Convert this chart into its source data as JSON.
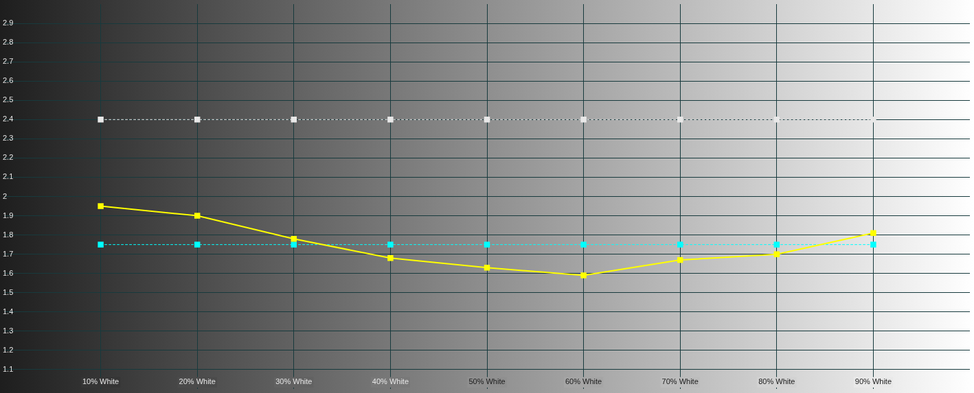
{
  "chart_data": {
    "type": "line",
    "x": [
      10,
      20,
      30,
      40,
      50,
      60,
      70,
      80,
      90
    ],
    "xlim": [
      0,
      100
    ],
    "xticks": [
      {
        "value": 10,
        "label": "10% White"
      },
      {
        "value": 20,
        "label": "20% White"
      },
      {
        "value": 30,
        "label": "30% White"
      },
      {
        "value": 40,
        "label": "40% White"
      },
      {
        "value": 50,
        "label": "50% White"
      },
      {
        "value": 60,
        "label": "60% White"
      },
      {
        "value": 70,
        "label": "70% White"
      },
      {
        "value": 80,
        "label": "80% White"
      },
      {
        "value": 90,
        "label": "90% White"
      }
    ],
    "ylim": [
      1.0,
      3.0
    ],
    "yticks": [
      1.1,
      1.2,
      1.3,
      1.4,
      1.5,
      1.6,
      1.7,
      1.8,
      1.9,
      2,
      2.1,
      2.2,
      2.3,
      2.4,
      2.5,
      2.6,
      2.7,
      2.8,
      2.9
    ],
    "grid": true,
    "marker": "square",
    "series": [
      {
        "color": "#e8e8e8",
        "line_style": "dashed",
        "values": [
          2.4,
          2.4,
          2.4,
          2.4,
          2.4,
          2.4,
          2.4,
          2.4,
          2.4
        ]
      },
      {
        "color": "#00ffff",
        "line_style": "dashed",
        "values": [
          1.75,
          1.75,
          1.75,
          1.75,
          1.75,
          1.75,
          1.75,
          1.75,
          1.75
        ]
      },
      {
        "color": "#ffff00",
        "line_style": "solid",
        "values": [
          1.95,
          1.9,
          1.78,
          1.68,
          1.63,
          1.59,
          1.67,
          1.7,
          1.81
        ]
      }
    ]
  }
}
